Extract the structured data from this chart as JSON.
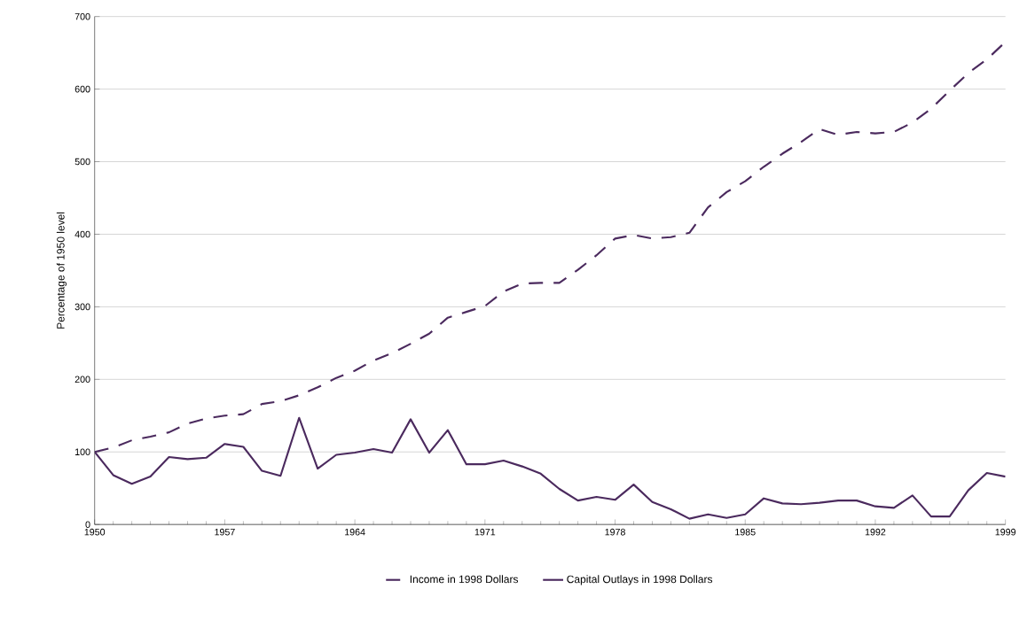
{
  "chart_data": {
    "type": "line",
    "ylabel": "Percentage of 1950 level",
    "x": [
      1950,
      1951,
      1952,
      1953,
      1954,
      1955,
      1956,
      1957,
      1958,
      1959,
      1960,
      1961,
      1962,
      1963,
      1964,
      1965,
      1966,
      1967,
      1968,
      1969,
      1970,
      1971,
      1972,
      1973,
      1974,
      1975,
      1976,
      1977,
      1978,
      1979,
      1980,
      1981,
      1982,
      1983,
      1984,
      1985,
      1986,
      1987,
      1988,
      1989,
      1990,
      1991,
      1992,
      1993,
      1994,
      1995,
      1996,
      1997,
      1998,
      1999
    ],
    "series": [
      {
        "name": "Income in 1998 Dollars",
        "color": "#4b2a5e",
        "line_style": "dashed",
        "values": [
          100,
          106,
          116,
          121,
          127,
          139,
          146,
          150,
          152,
          166,
          170,
          178,
          189,
          202,
          212,
          226,
          236,
          249,
          263,
          285,
          293,
          301,
          321,
          332,
          333,
          333,
          351,
          371,
          394,
          399,
          394,
          396,
          402,
          437,
          458,
          473,
          493,
          511,
          527,
          545,
          537,
          541,
          539,
          541,
          554,
          573,
          598,
          622,
          641,
          665
        ]
      },
      {
        "name": "Capital Outlays in 1998 Dollars",
        "color": "#4b2a5e",
        "line_style": "solid",
        "values": [
          100,
          68,
          56,
          66,
          93,
          90,
          92,
          111,
          107,
          74,
          67,
          147,
          77,
          96,
          99,
          104,
          99,
          145,
          99,
          130,
          83,
          83,
          88,
          80,
          70,
          49,
          33,
          38,
          34,
          55,
          31,
          21,
          8,
          14,
          9,
          14,
          36,
          29,
          28,
          30,
          33,
          33,
          25,
          23,
          40,
          11,
          11,
          47,
          71,
          66
        ]
      }
    ],
    "xlim": [
      1950,
      1999
    ],
    "ylim": [
      0,
      700
    ],
    "xticks": [
      1950,
      1957,
      1964,
      1971,
      1978,
      1985,
      1992,
      1999
    ],
    "yticks": [
      0,
      100,
      200,
      300,
      400,
      500,
      600,
      700
    ],
    "grid": "y",
    "legend": "bottom"
  }
}
